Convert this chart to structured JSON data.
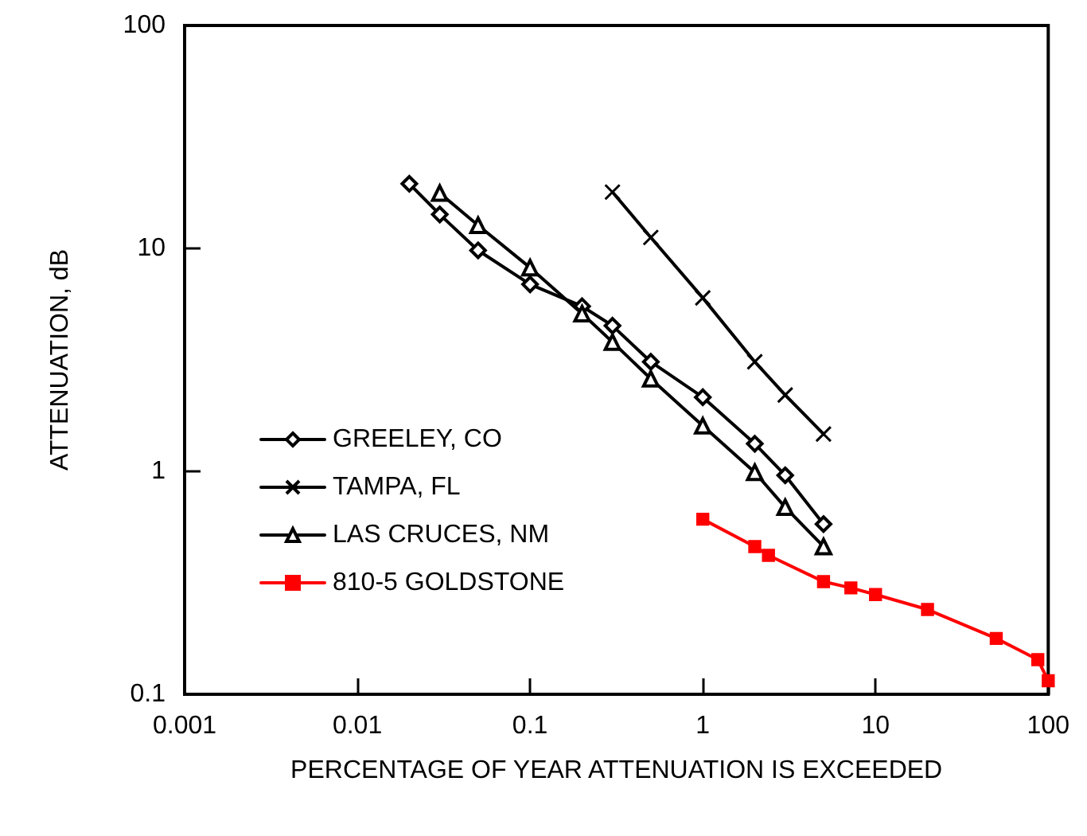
{
  "chart_data": {
    "type": "line",
    "xlabel": "PERCENTAGE OF YEAR ATTENUATION IS EXCEEDED",
    "ylabel": "ATTENUATION, dB",
    "log": "xy",
    "xlim": [
      0.001,
      100
    ],
    "xticks": [
      0.001,
      0.01,
      0.1,
      1,
      10,
      100
    ],
    "ylim": [
      0.1,
      100
    ],
    "yticks": [
      0.1,
      1,
      10,
      100
    ],
    "grid": false,
    "legend": "left",
    "series": [
      {
        "name": "GREELEY, CO",
        "color": "#000000",
        "marker": "diamond",
        "x": [
          0.02,
          0.03,
          0.05,
          0.1,
          0.2,
          0.3,
          0.5,
          1,
          2,
          3,
          5
        ],
        "values": [
          19.5,
          14.2,
          9.8,
          6.9,
          5.5,
          4.5,
          3.1,
          2.15,
          1.33,
          0.96,
          0.58
        ]
      },
      {
        "name": "TAMPA, FL",
        "color": "#000000",
        "marker": "cross",
        "x": [
          0.3,
          0.5,
          1,
          2,
          3,
          5
        ],
        "values": [
          17.9,
          11.2,
          6,
          3.1,
          2.2,
          1.47
        ]
      },
      {
        "name": "LAS CRUCES, NM",
        "color": "#000000",
        "marker": "triangle",
        "x": [
          0.03,
          0.05,
          0.1,
          0.2,
          0.3,
          0.5,
          1,
          2,
          3,
          5
        ],
        "values": [
          17.7,
          12.7,
          8.2,
          5.1,
          3.8,
          2.6,
          1.6,
          0.99,
          0.69,
          0.46
        ]
      },
      {
        "name": "810-5 GOLDSTONE",
        "color": "#ff0000",
        "marker": "square",
        "x": [
          1,
          2,
          2.4,
          5,
          7.2,
          10,
          20,
          50,
          87,
          100
        ],
        "values": [
          0.61,
          0.46,
          0.42,
          0.32,
          0.3,
          0.28,
          0.24,
          0.178,
          0.143,
          0.115
        ]
      }
    ]
  }
}
